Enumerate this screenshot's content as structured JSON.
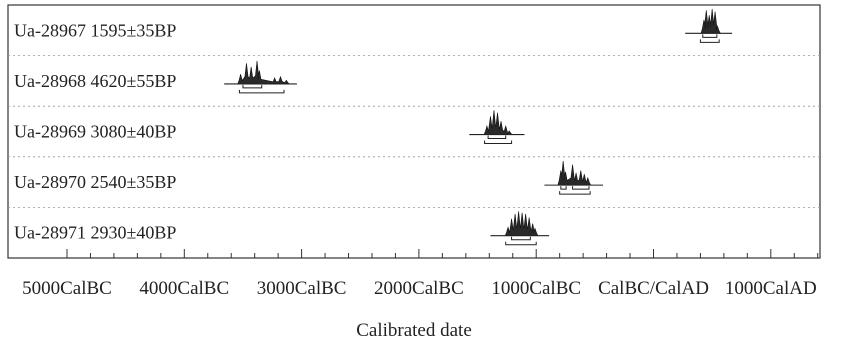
{
  "chart_data": {
    "type": "other",
    "xlabel": "Calibrated date",
    "x_range": [
      -5000,
      2000
    ],
    "x_ticks": [
      {
        "value": -5000,
        "label": "5000CalBC"
      },
      {
        "value": -4000,
        "label": "4000CalBC"
      },
      {
        "value": -3000,
        "label": "3000CalBC"
      },
      {
        "value": -2000,
        "label": "2000CalBC"
      },
      {
        "value": -1000,
        "label": "1000CalBC"
      },
      {
        "value": 0,
        "label": "CalBC/CalAD"
      },
      {
        "value": 1000,
        "label": "1000CalAD"
      }
    ],
    "grid": "dotted horizontal",
    "samples": [
      {
        "lab_id": "Ua-28967",
        "date_bp": "1595±35BP",
        "range_68": [
          [
            420,
            540
          ]
        ],
        "range_95": [
          [
            400,
            560
          ]
        ],
        "peaks": [
          [
            430,
            0.55
          ],
          [
            450,
            0.95
          ],
          [
            475,
            0.75
          ],
          [
            500,
            1.0
          ],
          [
            525,
            0.9
          ],
          [
            545,
            0.3
          ]
        ]
      },
      {
        "lab_id": "Ua-28968",
        "date_bp": "4620±55BP",
        "range_68": [
          [
            -3500,
            -3340
          ]
        ],
        "range_95": [
          [
            -3530,
            -3150
          ]
        ],
        "peaks": [
          [
            -3520,
            0.4
          ],
          [
            -3470,
            0.85
          ],
          [
            -3430,
            0.7
          ],
          [
            -3380,
            0.95
          ],
          [
            -3360,
            0.55
          ],
          [
            -3230,
            0.25
          ],
          [
            -3180,
            0.3
          ],
          [
            -3130,
            0.15
          ]
        ]
      },
      {
        "lab_id": "Ua-28969",
        "date_bp": "3080±40BP",
        "range_68": [
          [
            -1410,
            -1260
          ]
        ],
        "range_95": [
          [
            -1440,
            -1210
          ]
        ],
        "peaks": [
          [
            -1420,
            0.35
          ],
          [
            -1390,
            0.75
          ],
          [
            -1360,
            1.0
          ],
          [
            -1330,
            0.9
          ],
          [
            -1300,
            0.55
          ],
          [
            -1260,
            0.35
          ],
          [
            -1230,
            0.15
          ]
        ]
      },
      {
        "lab_id": "Ua-28970",
        "date_bp": "2540±35BP",
        "range_68": [
          [
            -790,
            -745
          ],
          [
            -690,
            -550
          ]
        ],
        "range_95": [
          [
            -800,
            -540
          ]
        ],
        "peaks": [
          [
            -790,
            0.6
          ],
          [
            -770,
            1.0
          ],
          [
            -750,
            0.55
          ],
          [
            -690,
            0.85
          ],
          [
            -660,
            0.5
          ],
          [
            -620,
            0.6
          ],
          [
            -590,
            0.45
          ],
          [
            -560,
            0.3
          ]
        ]
      },
      {
        "lab_id": "Ua-28971",
        "date_bp": "2930±40BP",
        "range_68": [
          [
            -1210,
            -1050
          ]
        ],
        "range_95": [
          [
            -1260,
            -1000
          ]
        ],
        "peaks": [
          [
            -1240,
            0.35
          ],
          [
            -1210,
            0.7
          ],
          [
            -1180,
            0.9
          ],
          [
            -1150,
            1.0
          ],
          [
            -1120,
            0.95
          ],
          [
            -1090,
            0.9
          ],
          [
            -1060,
            0.75
          ],
          [
            -1030,
            0.5
          ],
          [
            -1010,
            0.3
          ]
        ]
      }
    ]
  }
}
